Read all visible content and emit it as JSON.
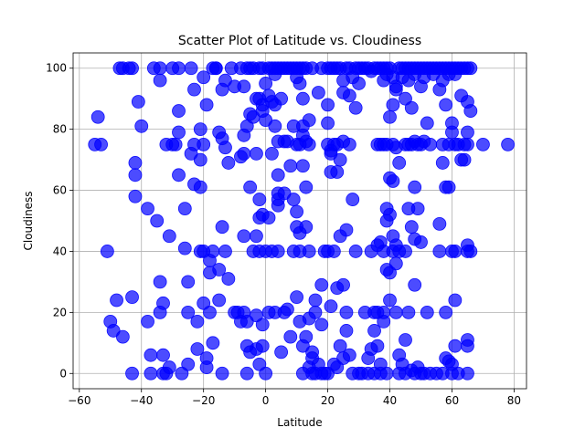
{
  "chart_data": {
    "type": "scatter",
    "title": "Scatter Plot of Latitude vs. Cloudiness",
    "xlabel": "Latitude",
    "ylabel": "Cloudiness",
    "xlim": [
      -62,
      84
    ],
    "ylim": [
      -5,
      105
    ],
    "xticks": [
      -60,
      -40,
      -20,
      0,
      20,
      40,
      60,
      80
    ],
    "yticks": [
      0,
      20,
      40,
      60,
      80,
      100
    ],
    "grid": true,
    "marker_color": "#0000ff",
    "marker_alpha": 0.7,
    "points": [
      [
        -54,
        84
      ],
      [
        -55,
        75
      ],
      [
        -53,
        75
      ],
      [
        -51,
        40
      ],
      [
        -50,
        17
      ],
      [
        -49,
        14
      ],
      [
        -48,
        24
      ],
      [
        -46,
        12
      ],
      [
        -47,
        100
      ],
      [
        -46,
        100
      ],
      [
        -44,
        100
      ],
      [
        -43,
        100
      ],
      [
        -42,
        69
      ],
      [
        -42,
        65
      ],
      [
        -42,
        58
      ],
      [
        -43,
        25
      ],
      [
        -43,
        0
      ],
      [
        -41,
        89
      ],
      [
        -40,
        81
      ],
      [
        -38,
        54
      ],
      [
        -38,
        17
      ],
      [
        -37,
        6
      ],
      [
        -37,
        0
      ],
      [
        -36,
        100
      ],
      [
        -35,
        50
      ],
      [
        -34,
        96
      ],
      [
        -34,
        100
      ],
      [
        -34,
        30
      ],
      [
        -34,
        20
      ],
      [
        -33,
        23
      ],
      [
        -33,
        6
      ],
      [
        -33,
        0
      ],
      [
        -32,
        75
      ],
      [
        -32,
        0
      ],
      [
        -31,
        45
      ],
      [
        -31,
        2
      ],
      [
        -30,
        100
      ],
      [
        -30,
        75
      ],
      [
        -29,
        75
      ],
      [
        -28,
        100
      ],
      [
        -28,
        65
      ],
      [
        -28,
        86
      ],
      [
        -28,
        79
      ],
      [
        -27,
        0
      ],
      [
        -26,
        54
      ],
      [
        -26,
        41
      ],
      [
        -25,
        30
      ],
      [
        -25,
        20
      ],
      [
        -25,
        3
      ],
      [
        -24,
        100
      ],
      [
        -24,
        72
      ],
      [
        -23,
        93
      ],
      [
        -23,
        75
      ],
      [
        -23,
        62
      ],
      [
        -22,
        17
      ],
      [
        -22,
        8
      ],
      [
        -21,
        80
      ],
      [
        -21,
        70
      ],
      [
        -21,
        40
      ],
      [
        -21,
        61
      ],
      [
        -20,
        75
      ],
      [
        -20,
        97
      ],
      [
        -20,
        40
      ],
      [
        -20,
        23
      ],
      [
        -19,
        88
      ],
      [
        -19,
        5
      ],
      [
        -19,
        2
      ],
      [
        -18,
        37
      ],
      [
        -18,
        33
      ],
      [
        -18,
        20
      ],
      [
        -17,
        100
      ],
      [
        -17,
        40
      ],
      [
        -17,
        10
      ],
      [
        -16,
        100
      ],
      [
        -16,
        100
      ],
      [
        -15,
        79
      ],
      [
        -15,
        34
      ],
      [
        -15,
        24
      ],
      [
        -14,
        93
      ],
      [
        -14,
        77
      ],
      [
        -14,
        48
      ],
      [
        -14,
        0
      ],
      [
        -13,
        96
      ],
      [
        -13,
        74
      ],
      [
        -13,
        40
      ],
      [
        -12,
        69
      ],
      [
        -12,
        31
      ],
      [
        -11,
        100
      ],
      [
        -10,
        94
      ],
      [
        -10,
        20
      ],
      [
        -9,
        20
      ],
      [
        -8,
        100
      ],
      [
        -8,
        71
      ],
      [
        -8,
        17
      ],
      [
        -7,
        72
      ],
      [
        -7,
        94
      ],
      [
        -7,
        78
      ],
      [
        -7,
        45
      ],
      [
        -7,
        20
      ],
      [
        -6,
        100
      ],
      [
        -6,
        81
      ],
      [
        -6,
        17
      ],
      [
        -6,
        9
      ],
      [
        -6,
        0
      ],
      [
        -5,
        100
      ],
      [
        -5,
        85
      ],
      [
        -5,
        61
      ],
      [
        -5,
        7
      ],
      [
        -4,
        100
      ],
      [
        -4,
        84
      ],
      [
        -4,
        40
      ],
      [
        -3,
        90
      ],
      [
        -3,
        72
      ],
      [
        -3,
        45
      ],
      [
        -3,
        19
      ],
      [
        -3,
        8
      ],
      [
        -2,
        100
      ],
      [
        -2,
        90
      ],
      [
        -2,
        57
      ],
      [
        -2,
        51
      ],
      [
        -2,
        40
      ],
      [
        -2,
        3
      ],
      [
        -1,
        100
      ],
      [
        -1,
        88
      ],
      [
        -1,
        86
      ],
      [
        -1,
        52
      ],
      [
        -1,
        16
      ],
      [
        -1,
        9
      ],
      [
        0,
        95
      ],
      [
        0,
        83
      ],
      [
        0,
        40
      ],
      [
        0,
        0
      ],
      [
        1,
        100
      ],
      [
        1,
        91
      ],
      [
        1,
        51
      ],
      [
        1,
        20
      ],
      [
        2,
        100
      ],
      [
        2,
        89
      ],
      [
        2,
        72
      ],
      [
        2,
        40
      ],
      [
        3,
        100
      ],
      [
        3,
        98
      ],
      [
        3,
        88
      ],
      [
        3,
        81
      ],
      [
        3,
        20
      ],
      [
        4,
        100
      ],
      [
        4,
        76
      ],
      [
        4,
        65
      ],
      [
        4,
        59
      ],
      [
        4,
        57
      ],
      [
        4,
        55
      ],
      [
        4,
        40
      ],
      [
        5,
        100
      ],
      [
        5,
        90
      ],
      [
        5,
        7
      ],
      [
        6,
        100
      ],
      [
        6,
        76
      ],
      [
        6,
        59
      ],
      [
        6,
        20
      ],
      [
        7,
        100
      ],
      [
        7,
        76
      ],
      [
        7,
        21
      ],
      [
        8,
        100
      ],
      [
        8,
        68
      ],
      [
        8,
        12
      ],
      [
        9,
        100
      ],
      [
        9,
        81
      ],
      [
        9,
        57
      ],
      [
        9,
        40
      ],
      [
        10,
        100
      ],
      [
        10,
        97
      ],
      [
        10,
        75
      ],
      [
        10,
        53
      ],
      [
        10,
        48
      ],
      [
        10,
        25
      ],
      [
        11,
        100
      ],
      [
        11,
        95
      ],
      [
        11,
        75
      ],
      [
        11,
        46
      ],
      [
        11,
        40
      ],
      [
        11,
        17
      ],
      [
        12,
        100
      ],
      [
        12,
        90
      ],
      [
        12,
        81
      ],
      [
        12,
        78
      ],
      [
        12,
        68
      ],
      [
        12,
        9
      ],
      [
        12,
        0
      ],
      [
        13,
        100
      ],
      [
        13,
        76
      ],
      [
        13,
        61
      ],
      [
        13,
        48
      ],
      [
        13,
        12
      ],
      [
        14,
        83
      ],
      [
        14,
        75
      ],
      [
        14,
        40
      ],
      [
        14,
        18
      ],
      [
        14,
        2
      ],
      [
        15,
        100
      ],
      [
        15,
        7
      ],
      [
        15,
        5
      ],
      [
        15,
        0
      ],
      [
        16,
        24
      ],
      [
        16,
        20
      ],
      [
        16,
        0
      ],
      [
        17,
        92
      ],
      [
        17,
        3
      ],
      [
        18,
        100
      ],
      [
        18,
        29
      ],
      [
        18,
        16
      ],
      [
        18,
        0
      ],
      [
        19,
        40
      ],
      [
        19,
        0
      ],
      [
        20,
        100
      ],
      [
        20,
        88
      ],
      [
        20,
        82
      ],
      [
        20,
        75
      ],
      [
        20,
        40
      ],
      [
        20,
        0
      ],
      [
        21,
        100
      ],
      [
        21,
        73
      ],
      [
        21,
        72
      ],
      [
        21,
        66
      ],
      [
        21,
        22
      ],
      [
        22,
        100
      ],
      [
        22,
        75
      ],
      [
        22,
        40
      ],
      [
        22,
        3
      ],
      [
        23,
        100
      ],
      [
        23,
        75
      ],
      [
        23,
        66
      ],
      [
        23,
        28
      ],
      [
        23,
        2
      ],
      [
        24,
        100
      ],
      [
        24,
        70
      ],
      [
        24,
        45
      ],
      [
        24,
        9
      ],
      [
        25,
        96
      ],
      [
        25,
        92
      ],
      [
        25,
        76
      ],
      [
        25,
        29
      ],
      [
        25,
        5
      ],
      [
        26,
        100
      ],
      [
        26,
        47
      ],
      [
        26,
        20
      ],
      [
        26,
        14
      ],
      [
        27,
        100
      ],
      [
        27,
        91
      ],
      [
        27,
        75
      ],
      [
        27,
        6
      ],
      [
        28,
        97
      ],
      [
        28,
        57
      ],
      [
        28,
        0
      ],
      [
        29,
        100
      ],
      [
        29,
        87
      ],
      [
        29,
        40
      ],
      [
        30,
        100
      ],
      [
        30,
        95
      ],
      [
        30,
        0
      ],
      [
        31,
        100
      ],
      [
        31,
        0
      ],
      [
        32,
        100
      ],
      [
        32,
        20
      ],
      [
        33,
        100
      ],
      [
        33,
        5
      ],
      [
        33,
        0
      ],
      [
        34,
        99
      ],
      [
        34,
        40
      ],
      [
        34,
        8
      ],
      [
        35,
        100
      ],
      [
        35,
        20
      ],
      [
        35,
        14
      ],
      [
        35,
        0
      ],
      [
        36,
        100
      ],
      [
        36,
        75
      ],
      [
        36,
        42
      ],
      [
        36,
        20
      ],
      [
        36,
        9
      ],
      [
        37,
        100
      ],
      [
        37,
        75
      ],
      [
        37,
        43
      ],
      [
        37,
        3
      ],
      [
        37,
        0
      ],
      [
        38,
        100
      ],
      [
        38,
        96
      ],
      [
        38,
        75
      ],
      [
        38,
        40
      ],
      [
        38,
        20
      ],
      [
        38,
        17
      ],
      [
        39,
        100
      ],
      [
        39,
        98
      ],
      [
        39,
        75
      ],
      [
        39,
        54
      ],
      [
        39,
        50
      ],
      [
        39,
        34
      ],
      [
        39,
        0
      ],
      [
        40,
        100
      ],
      [
        40,
        84
      ],
      [
        40,
        64
      ],
      [
        40,
        52
      ],
      [
        40,
        33
      ],
      [
        40,
        24
      ],
      [
        41,
        97
      ],
      [
        41,
        88
      ],
      [
        41,
        75
      ],
      [
        41,
        63
      ],
      [
        41,
        45
      ],
      [
        41,
        40
      ],
      [
        42,
        94
      ],
      [
        42,
        93
      ],
      [
        42,
        74
      ],
      [
        42,
        42
      ],
      [
        42,
        36
      ],
      [
        42,
        20
      ],
      [
        43,
        100
      ],
      [
        43,
        69
      ],
      [
        43,
        40
      ],
      [
        43,
        6
      ],
      [
        43,
        0
      ],
      [
        44,
        100
      ],
      [
        44,
        97
      ],
      [
        44,
        3
      ],
      [
        45,
        100
      ],
      [
        45,
        90
      ],
      [
        45,
        75
      ],
      [
        45,
        40
      ],
      [
        45,
        11
      ],
      [
        45,
        0
      ],
      [
        46,
        100
      ],
      [
        46,
        96
      ],
      [
        46,
        75
      ],
      [
        46,
        54
      ],
      [
        46,
        20
      ],
      [
        47,
        100
      ],
      [
        47,
        87
      ],
      [
        47,
        75
      ],
      [
        47,
        48
      ],
      [
        47,
        1
      ],
      [
        48,
        100
      ],
      [
        48,
        98
      ],
      [
        48,
        76
      ],
      [
        48,
        61
      ],
      [
        48,
        44
      ],
      [
        48,
        29
      ],
      [
        48,
        0
      ],
      [
        49,
        100
      ],
      [
        49,
        75
      ],
      [
        49,
        54
      ],
      [
        49,
        2
      ],
      [
        50,
        100
      ],
      [
        50,
        94
      ],
      [
        50,
        75
      ],
      [
        50,
        43
      ],
      [
        50,
        0
      ],
      [
        51,
        100
      ],
      [
        51,
        97
      ],
      [
        51,
        76
      ],
      [
        51,
        0
      ],
      [
        52,
        100
      ],
      [
        52,
        82
      ],
      [
        52,
        20
      ],
      [
        53,
        100
      ],
      [
        53,
        75
      ],
      [
        53,
        0
      ],
      [
        54,
        100
      ],
      [
        54,
        98
      ],
      [
        55,
        100
      ],
      [
        55,
        0
      ],
      [
        56,
        100
      ],
      [
        56,
        93
      ],
      [
        56,
        49
      ],
      [
        56,
        40
      ],
      [
        57,
        100
      ],
      [
        57,
        96
      ],
      [
        57,
        75
      ],
      [
        57,
        69
      ],
      [
        57,
        0
      ],
      [
        58,
        100
      ],
      [
        58,
        88
      ],
      [
        58,
        61
      ],
      [
        58,
        20
      ],
      [
        58,
        5
      ],
      [
        59,
        100
      ],
      [
        59,
        98
      ],
      [
        59,
        75
      ],
      [
        59,
        61
      ],
      [
        59,
        4
      ],
      [
        60,
        100
      ],
      [
        60,
        82
      ],
      [
        60,
        79
      ],
      [
        60,
        40
      ],
      [
        60,
        3
      ],
      [
        60,
        0
      ],
      [
        61,
        100
      ],
      [
        61,
        98
      ],
      [
        61,
        75
      ],
      [
        61,
        40
      ],
      [
        61,
        24
      ],
      [
        61,
        9
      ],
      [
        62,
        100
      ],
      [
        62,
        75
      ],
      [
        62,
        0
      ],
      [
        63,
        100
      ],
      [
        63,
        91
      ],
      [
        63,
        70
      ],
      [
        64,
        100
      ],
      [
        64,
        75
      ],
      [
        64,
        70
      ],
      [
        65,
        100
      ],
      [
        65,
        89
      ],
      [
        65,
        79
      ],
      [
        65,
        75
      ],
      [
        65,
        42
      ],
      [
        65,
        40
      ],
      [
        65,
        11
      ],
      [
        65,
        9
      ],
      [
        65,
        0
      ],
      [
        66,
        100
      ],
      [
        66,
        86
      ],
      [
        66,
        40
      ],
      [
        70,
        75
      ],
      [
        78,
        75
      ]
    ]
  }
}
